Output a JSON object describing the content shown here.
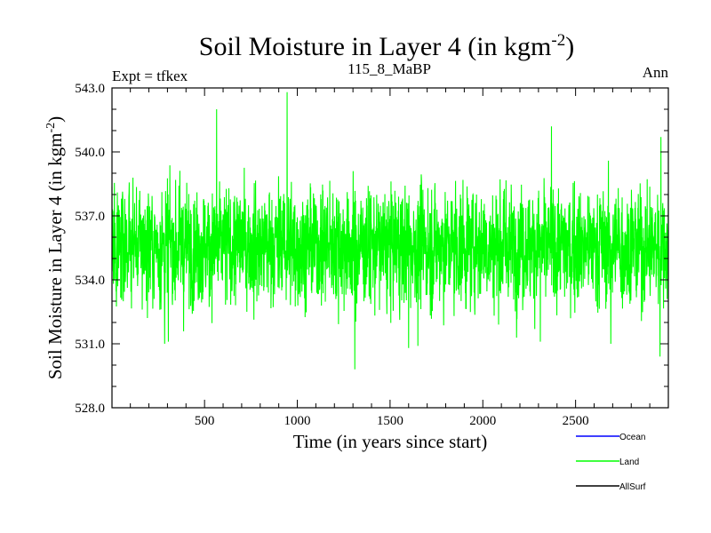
{
  "chart_data": {
    "type": "line",
    "title_main": "Soil Moisture in Layer 4 (in kgm",
    "title_sup": "-2",
    "title_close": ")",
    "subtitle_left": "Expt = tfkex",
    "subtitle_center": "115_8_MaBP",
    "subtitle_right": "Ann",
    "xlabel": "Time (in years since start)",
    "ylabel_main": "Soil Moisture in Layer 4 (in kgm",
    "ylabel_sup": "-2",
    "ylabel_close": ")",
    "xlim": [
      1,
      3000
    ],
    "ylim": [
      528.0,
      543.0
    ],
    "x_ticks": [
      500,
      1000,
      1500,
      2000,
      2500
    ],
    "x_tick_labels": [
      "500",
      "1000",
      "1500",
      "2000",
      "2500"
    ],
    "y_ticks": [
      528.0,
      531.0,
      534.0,
      537.0,
      540.0,
      543.0
    ],
    "y_tick_labels": [
      "528.0",
      "531.0",
      "534.0",
      "537.0",
      "540.0",
      "543.0"
    ],
    "grid": false,
    "legend_position": "bottom-right, below plot",
    "series": [
      {
        "name": "Ocean",
        "color": "#0000ff",
        "values": []
      },
      {
        "name": "Land",
        "color": "#00ff00",
        "mean": 535.6,
        "sd": 1.4,
        "min": 529.8,
        "max": 542.8,
        "x_start": 1,
        "x_end": 3000,
        "x_step": 1,
        "notable_points": [
          [
            30,
            538.1
          ],
          [
            285,
            531.0
          ],
          [
            305,
            531.1
          ],
          [
            565,
            542.0
          ],
          [
            945,
            542.8
          ],
          [
            1310,
            529.8
          ],
          [
            1600,
            530.8
          ],
          [
            1650,
            530.9
          ],
          [
            2310,
            531.1
          ],
          [
            2370,
            541.2
          ],
          [
            2690,
            531.0
          ],
          [
            2955,
            530.4
          ],
          [
            2960,
            540.7
          ]
        ]
      },
      {
        "name": "AllSurf",
        "color": "#000000",
        "values": []
      }
    ]
  },
  "legend": [
    {
      "label": "Ocean",
      "color": "#0000ff"
    },
    {
      "label": "Land",
      "color": "#00ff00"
    },
    {
      "label": "AllSurf",
      "color": "#000000"
    }
  ]
}
